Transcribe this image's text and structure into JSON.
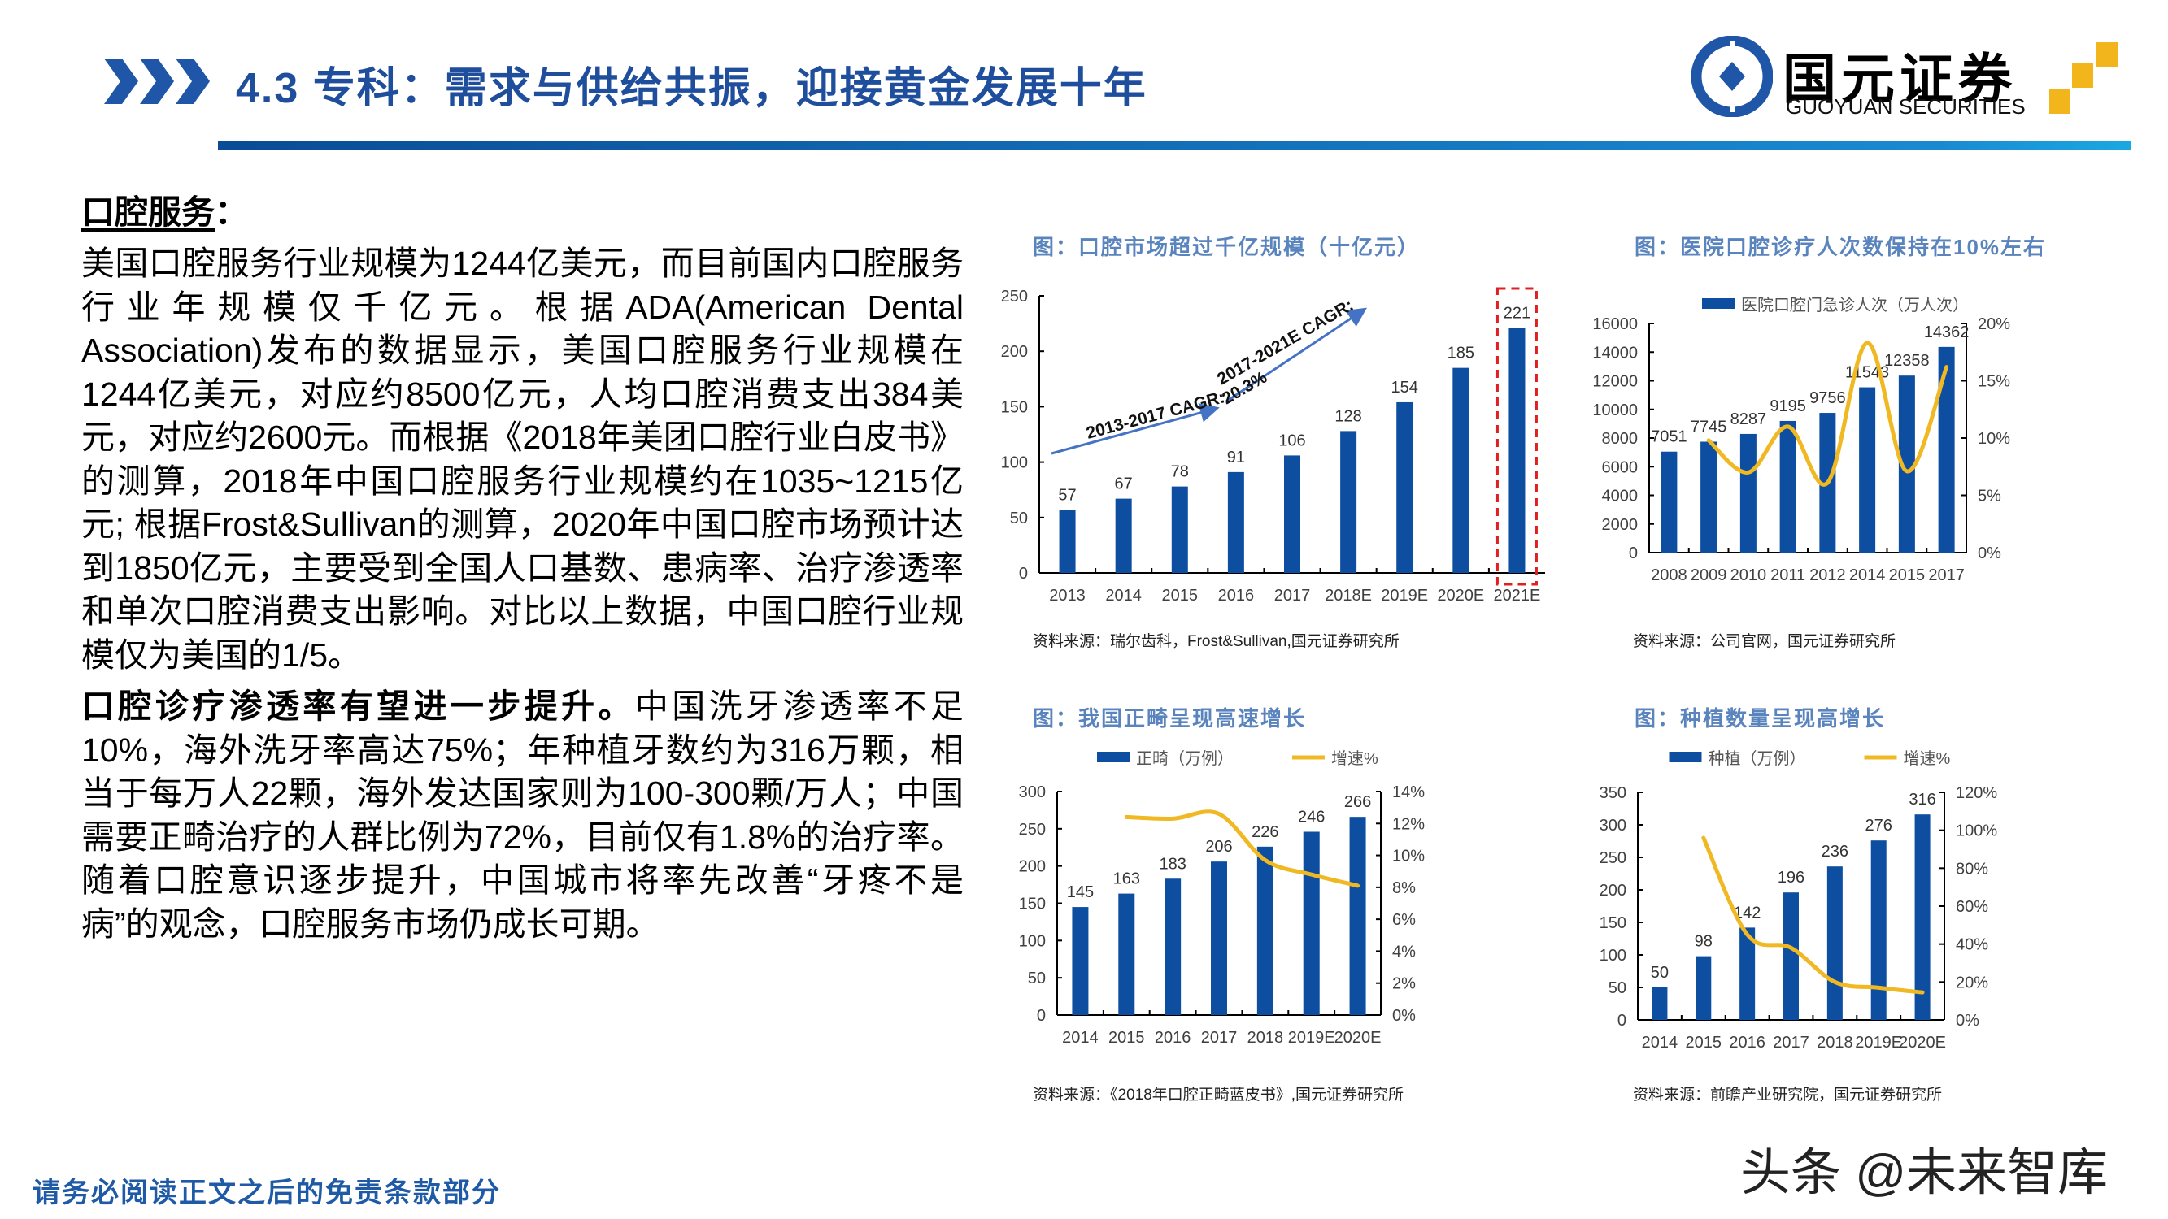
{
  "header": {
    "title": "4.3 专科：需求与供给共振，迎接黄金发展十年",
    "logo_cn": "国元证券",
    "logo_en": "GUOYUAN SECURITIES",
    "accent": "#1f4e9c",
    "logo_gold": "#f2b51c"
  },
  "left": {
    "heading": "口腔服务",
    "heading_colon": "：",
    "p1": "美国口腔服务行业规模为1244亿美元，而目前国内口腔服务行业年规模仅千亿元。根据ADA(American Dental Association)发布的数据显示，美国口腔服务行业规模在1244亿美元，对应约8500亿元，人均口腔消费支出384美元，对应约2600元。而根据《2018年美团口腔行业白皮书》的测算，2018年中国口腔服务行业规模约在1035~1215亿元; 根据Frost&Sullivan的测算，2020年中国口腔市场预计达到1850亿元，主要受到全国人口基数、患病率、治疗渗透率和单次口腔消费支出影响。对比以上数据，中国口腔行业规模仅为美国的1/5。",
    "p2_bold": "口腔诊疗渗透率有望进一步提升。",
    "p2": "中国洗牙渗透率不足10%，海外洗牙率高达75%；年种植牙数约为316万颗，相当于每万人22颗，海外发达国家则为100-300颗/万人；中国需要正畸治疗的人群比例为72%，目前仅有1.8%的治疗率。随着口腔意识逐步提升，中国城市将率先改善“牙疼不是病”的观念，口腔服务市场仍成长可期。"
  },
  "footer": "请务必阅读正文之后的免责条款部分",
  "watermark": "头条 @未来智库",
  "chart_data": [
    {
      "type": "bar",
      "title": "图：口腔市场超过千亿规模（十亿元）",
      "source": "资料来源：瑞尔齿科，Frost&Sullivan,国元证券研究所",
      "categories": [
        "2013",
        "2014",
        "2015",
        "2016",
        "2017",
        "2018E",
        "2019E",
        "2020E",
        "2021E"
      ],
      "values": [
        57,
        67,
        78,
        91,
        106,
        128,
        154,
        185,
        221
      ],
      "ylim": [
        0,
        250
      ],
      "yticks": [
        "0",
        "50",
        "100",
        "150",
        "200",
        "250"
      ],
      "annotations": [
        "2013-2017 CAGR:",
        "2017-2021E CAGR:",
        "20.3%"
      ],
      "highlight_category": "2021E",
      "bar_color": "#0d4ea1",
      "highlight_color": "#e02020",
      "arrow_color": "#4472c4"
    },
    {
      "type": "bar+line",
      "title": "图：医院口腔诊疗人次数保持在10%左右",
      "source": "资料来源：公司官网，国元证券研究所",
      "categories": [
        "2008",
        "2009",
        "2010",
        "2011",
        "2012",
        "2014",
        "2015",
        "2017"
      ],
      "series": [
        {
          "name": "医院口腔门急诊人次（万人次）",
          "values": [
            7051,
            7745,
            8287,
            9195,
            9756,
            11543,
            12358,
            14362
          ]
        },
        {
          "values": [
            null,
            9.8,
            7.0,
            11.0,
            6.1,
            18.3,
            7.1,
            16.2
          ]
        }
      ],
      "ylim": [
        0,
        16000
      ],
      "yticks": [
        "0",
        "2000",
        "4000",
        "6000",
        "8000",
        "10000",
        "12000",
        "14000",
        "16000"
      ],
      "y2lim": [
        0,
        20
      ],
      "y2ticks": [
        "0%",
        "5%",
        "10%",
        "15%",
        "20%"
      ],
      "legend": "top",
      "bar_color": "#0d4ea1",
      "line_color": "#f0b823"
    },
    {
      "type": "bar+line",
      "title": "图：我国正畸呈现高速增长",
      "source": "资料来源：《2018年口腔正畸蓝皮书》,国元证券研究所",
      "categories": [
        "2014",
        "2015",
        "2016",
        "2017",
        "2018",
        "2019E",
        "2020E"
      ],
      "series": [
        {
          "name": "正畸（万例）",
          "values": [
            145,
            163,
            183,
            206,
            226,
            246,
            266
          ]
        },
        {
          "name": "增速%",
          "values": [
            null,
            12.4,
            12.3,
            12.6,
            9.7,
            8.8,
            8.1
          ]
        }
      ],
      "ylim": [
        0,
        300
      ],
      "yticks": [
        "0",
        "50",
        "100",
        "150",
        "200",
        "250",
        "300"
      ],
      "y2lim": [
        0,
        14
      ],
      "y2ticks": [
        "0%",
        "2%",
        "4%",
        "6%",
        "8%",
        "10%",
        "12%",
        "14%"
      ],
      "legend": "top",
      "bar_color": "#0d4ea1",
      "line_color": "#f0b823"
    },
    {
      "type": "bar+line",
      "title": "图：种植数量呈现高增长",
      "source": "资料来源：前瞻产业研究院，国元证券研究所",
      "categories": [
        "2014",
        "2015",
        "2016",
        "2017",
        "2018",
        "2019E",
        "2020E"
      ],
      "series": [
        {
          "name": "种植（万例）",
          "values": [
            50,
            98,
            142,
            196,
            236,
            276,
            316
          ]
        },
        {
          "name": "增速%",
          "values": [
            null,
            96,
            45,
            38,
            20,
            17,
            14.5
          ]
        }
      ],
      "ylim": [
        0,
        350
      ],
      "yticks": [
        "0",
        "50",
        "100",
        "150",
        "200",
        "250",
        "300",
        "350"
      ],
      "y2lim": [
        0,
        120
      ],
      "y2ticks": [
        "0%",
        "20%",
        "40%",
        "60%",
        "80%",
        "100%",
        "120%"
      ],
      "legend": "top",
      "bar_color": "#0d4ea1",
      "line_color": "#f0b823"
    }
  ]
}
